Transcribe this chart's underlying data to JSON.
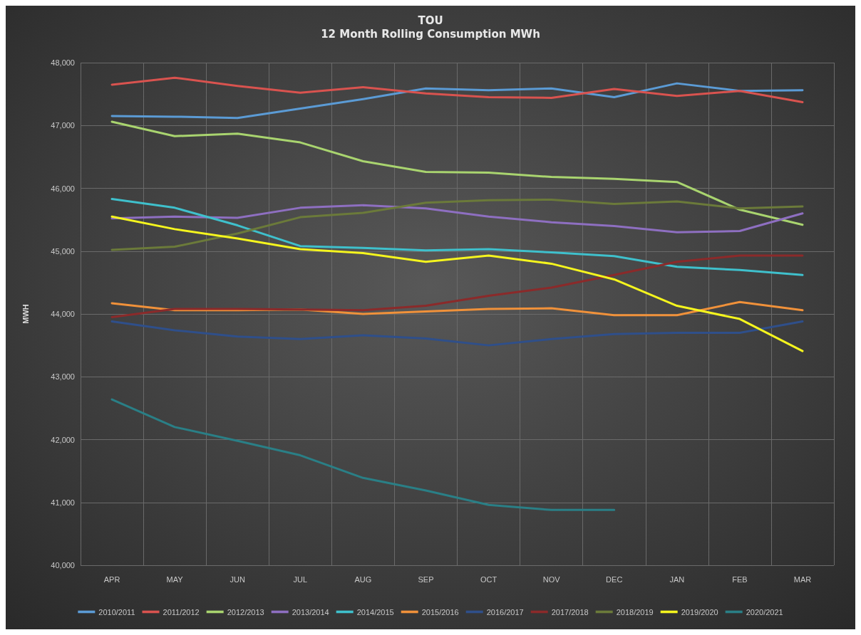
{
  "chart_data": {
    "type": "line",
    "title": "TOU",
    "subtitle": "12 Month Rolling Consumption MWh",
    "ylabel": "MWH",
    "categories": [
      "APR",
      "MAY",
      "JUN",
      "JUL",
      "AUG",
      "SEP",
      "OCT",
      "NOV",
      "DEC",
      "JAN",
      "FEB",
      "MAR"
    ],
    "ylim": [
      40000,
      48000
    ],
    "yticks": [
      {
        "value": 40000,
        "label": "40,000"
      },
      {
        "value": 41000,
        "label": "41,000"
      },
      {
        "value": 42000,
        "label": "42,000"
      },
      {
        "value": 43000,
        "label": "43,000"
      },
      {
        "value": 44000,
        "label": "44,000"
      },
      {
        "value": 45000,
        "label": "45,000"
      },
      {
        "value": 46000,
        "label": "46,000"
      },
      {
        "value": 47000,
        "label": "47,000"
      },
      {
        "value": 48000,
        "label": "48,000"
      }
    ],
    "grid": true,
    "legend": "bottom",
    "marker": "none",
    "line_style": "solid",
    "series": [
      {
        "name": "2010/2011",
        "color": "#5b9bd5",
        "values": [
          47150,
          47140,
          47120,
          47270,
          47420,
          47590,
          47560,
          47590,
          47450,
          47670,
          47550,
          47560
        ]
      },
      {
        "name": "2011/2012",
        "color": "#d9534f",
        "values": [
          47650,
          47760,
          47630,
          47520,
          47610,
          47510,
          47450,
          47440,
          47580,
          47470,
          47550,
          47370
        ]
      },
      {
        "name": "2012/2013",
        "color": "#a9d46f",
        "values": [
          47060,
          46830,
          46870,
          46730,
          46430,
          46260,
          46250,
          46180,
          46150,
          46100,
          45660,
          45420
        ]
      },
      {
        "name": "2013/2014",
        "color": "#8e6fc1",
        "values": [
          45520,
          45550,
          45530,
          45690,
          45730,
          45680,
          45550,
          45460,
          45400,
          45300,
          45320,
          45600
        ]
      },
      {
        "name": "2014/2015",
        "color": "#3fc0cc",
        "values": [
          45830,
          45690,
          45410,
          45080,
          45050,
          45010,
          45030,
          44980,
          44920,
          44750,
          44700,
          44620
        ]
      },
      {
        "name": "2015/2016",
        "color": "#f0913a",
        "values": [
          44170,
          44060,
          44060,
          44070,
          44000,
          44040,
          44080,
          44090,
          43980,
          43980,
          44190,
          44060
        ]
      },
      {
        "name": "2016/2017",
        "color": "#2f4f8a",
        "values": [
          43880,
          43740,
          43640,
          43600,
          43660,
          43610,
          43500,
          43600,
          43680,
          43700,
          43700,
          43880
        ]
      },
      {
        "name": "2017/2018",
        "color": "#8b2a2a",
        "values": [
          43950,
          44080,
          44080,
          44070,
          44060,
          44130,
          44290,
          44420,
          44620,
          44830,
          44930,
          44930
        ]
      },
      {
        "name": "2018/2019",
        "color": "#6b7a3a",
        "values": [
          45020,
          45070,
          45280,
          45540,
          45610,
          45770,
          45810,
          45820,
          45750,
          45790,
          45680,
          45710
        ]
      },
      {
        "name": "2019/2020",
        "color": "#f5f51e",
        "values": [
          45550,
          45350,
          45200,
          45030,
          44970,
          44830,
          44930,
          44800,
          44550,
          44130,
          43920,
          43410
        ]
      },
      {
        "name": "2020/2021",
        "color": "#2a7f86",
        "values": [
          42640,
          42200,
          41980,
          41750,
          41390,
          41190,
          40960,
          40880,
          40880,
          null,
          null,
          null
        ]
      }
    ]
  }
}
